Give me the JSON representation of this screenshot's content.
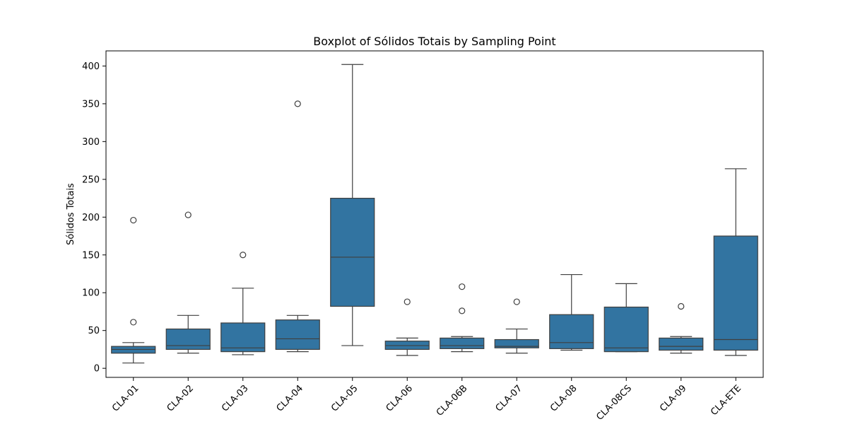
{
  "chart_data": {
    "type": "boxplot",
    "title": "Boxplot of Sólidos Totais by Sampling Point",
    "xlabel": "",
    "ylabel": "Sólidos Totais",
    "ylim": [
      -12,
      420
    ],
    "yticks": [
      0,
      50,
      100,
      150,
      200,
      250,
      300,
      350,
      400
    ],
    "grid": false,
    "box_color": "#3274a1",
    "line_color": "#3f3f3f",
    "categories": [
      "CLA-01",
      "CLA-02",
      "CLA-03",
      "CLA-04",
      "CLA-05",
      "CLA-06",
      "CLA-06B",
      "CLA-07",
      "CLA-08",
      "CLA-08CS",
      "CLA-09",
      "CLA-ETE"
    ],
    "boxes": [
      {
        "whisker_low": 7,
        "q1": 20,
        "median": 25,
        "q3": 29,
        "whisker_high": 34,
        "outliers": [
          61,
          196
        ]
      },
      {
        "whisker_low": 20,
        "q1": 25,
        "median": 30,
        "q3": 52,
        "whisker_high": 70,
        "outliers": [
          203
        ]
      },
      {
        "whisker_low": 18,
        "q1": 22,
        "median": 27,
        "q3": 60,
        "whisker_high": 106,
        "outliers": [
          150
        ]
      },
      {
        "whisker_low": 22,
        "q1": 25,
        "median": 39,
        "q3": 64,
        "whisker_high": 70,
        "outliers": [
          350
        ]
      },
      {
        "whisker_low": 30,
        "q1": 82,
        "median": 147,
        "q3": 225,
        "whisker_high": 402,
        "outliers": []
      },
      {
        "whisker_low": 17,
        "q1": 25,
        "median": 30,
        "q3": 36,
        "whisker_high": 40,
        "outliers": [
          88
        ]
      },
      {
        "whisker_low": 22,
        "q1": 26,
        "median": 30,
        "q3": 40,
        "whisker_high": 42,
        "outliers": [
          76,
          108
        ]
      },
      {
        "whisker_low": 20,
        "q1": 27,
        "median": 29,
        "q3": 38,
        "whisker_high": 52,
        "outliers": [
          88
        ]
      },
      {
        "whisker_low": 24,
        "q1": 26,
        "median": 34,
        "q3": 71,
        "whisker_high": 124,
        "outliers": []
      },
      {
        "whisker_low": 22,
        "q1": 22,
        "median": 27,
        "q3": 81,
        "whisker_high": 112,
        "outliers": []
      },
      {
        "whisker_low": 20,
        "q1": 24,
        "median": 29,
        "q3": 40,
        "whisker_high": 42,
        "outliers": [
          82
        ]
      },
      {
        "whisker_low": 17,
        "q1": 24,
        "median": 38,
        "q3": 175,
        "whisker_high": 264,
        "outliers": []
      }
    ]
  }
}
